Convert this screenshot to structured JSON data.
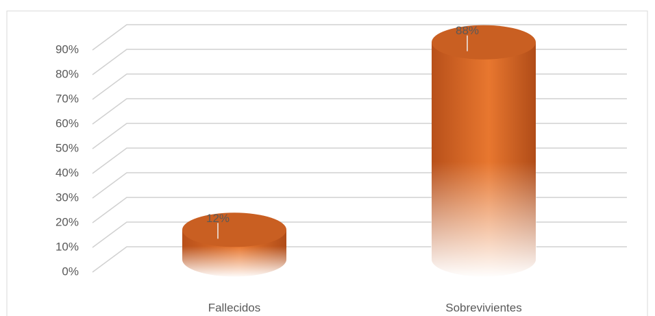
{
  "chart_data": {
    "type": "bar3d",
    "categories": [
      "Fallecidos",
      "Sobrevivientes"
    ],
    "values": [
      12,
      88
    ],
    "value_labels": [
      "12%",
      "88%"
    ],
    "color": "#d9692a",
    "ylim": [
      0,
      90
    ],
    "yticks": [
      {
        "value": 0,
        "label": "0%"
      },
      {
        "value": 10,
        "label": "10%"
      },
      {
        "value": 20,
        "label": "20%"
      },
      {
        "value": 30,
        "label": "30%"
      },
      {
        "value": 40,
        "label": "40%"
      },
      {
        "value": 50,
        "label": "50%"
      },
      {
        "value": 60,
        "label": "60%"
      },
      {
        "value": 70,
        "label": "70%"
      },
      {
        "value": 80,
        "label": "80%"
      },
      {
        "value": 90,
        "label": "90%"
      }
    ],
    "grid": true
  }
}
